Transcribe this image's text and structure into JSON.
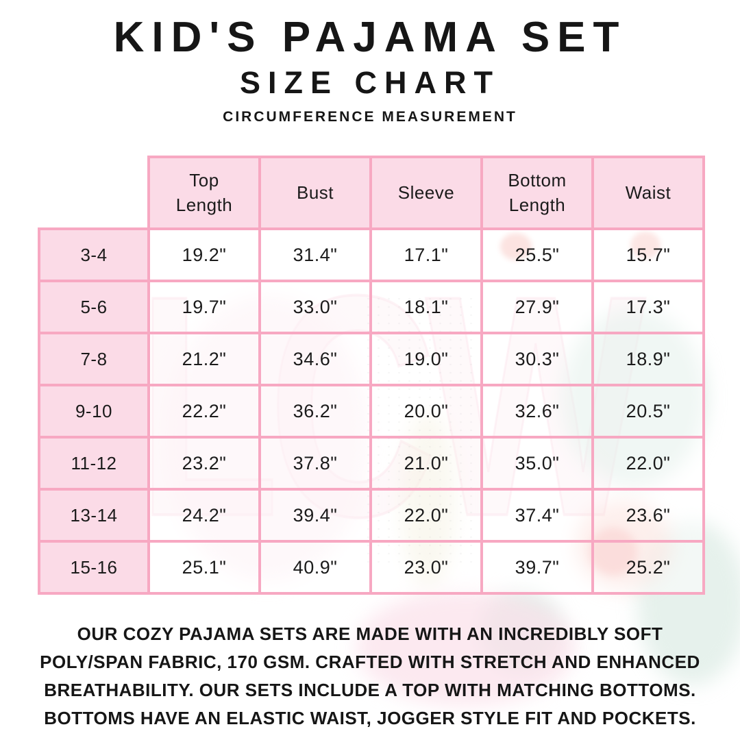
{
  "page": {
    "title": "KID'S PAJAMA SET",
    "subtitle": "SIZE CHART",
    "tagline": "CIRCUMFERENCE MEASUREMENT"
  },
  "chart_data": {
    "type": "table",
    "title": "KID'S PAJAMA SET SIZE CHART",
    "note": "CIRCUMFERENCE MEASUREMENT",
    "unit": "inches",
    "columns": [
      "Top Length",
      "Bust",
      "Sleeve",
      "Bottom Length",
      "Waist"
    ],
    "row_labels": [
      "3-4",
      "5-6",
      "7-8",
      "9-10",
      "11-12",
      "13-14",
      "15-16"
    ],
    "values": [
      [
        "19.2\"",
        "31.4\"",
        "17.1\"",
        "25.5\"",
        "15.7\""
      ],
      [
        "19.7\"",
        "33.0\"",
        "18.1\"",
        "27.9\"",
        "17.3\""
      ],
      [
        "21.2\"",
        "34.6\"",
        "19.0\"",
        "30.3\"",
        "18.9\""
      ],
      [
        "22.2\"",
        "36.2\"",
        "20.0\"",
        "32.6\"",
        "20.5\""
      ],
      [
        "23.2\"",
        "37.8\"",
        "21.0\"",
        "35.0\"",
        "22.0\""
      ],
      [
        "24.2\"",
        "39.4\"",
        "22.0\"",
        "37.4\"",
        "23.6\""
      ],
      [
        "25.1\"",
        "40.9\"",
        "23.0\"",
        "39.7\"",
        "25.2\""
      ]
    ]
  },
  "description_lines": [
    "OUR COZY PAJAMA SETS ARE MADE WITH AN INCREDIBLY SOFT",
    "POLY/SPAN FABRIC, 170 GSM. CRAFTED WITH STRETCH AND ENHANCED",
    "BREATHABILITY. OUR SETS INCLUDE A TOP WITH MATCHING BOTTOMS.",
    "BOTTOMS HAVE AN ELASTIC WAIST, JOGGER STYLE FIT AND POCKETS."
  ],
  "watermark": {
    "text": "LCW"
  },
  "colors": {
    "table_border": "#f7a8c2",
    "cell_fill_pink": "#fbdbe7",
    "text": "#161616"
  }
}
